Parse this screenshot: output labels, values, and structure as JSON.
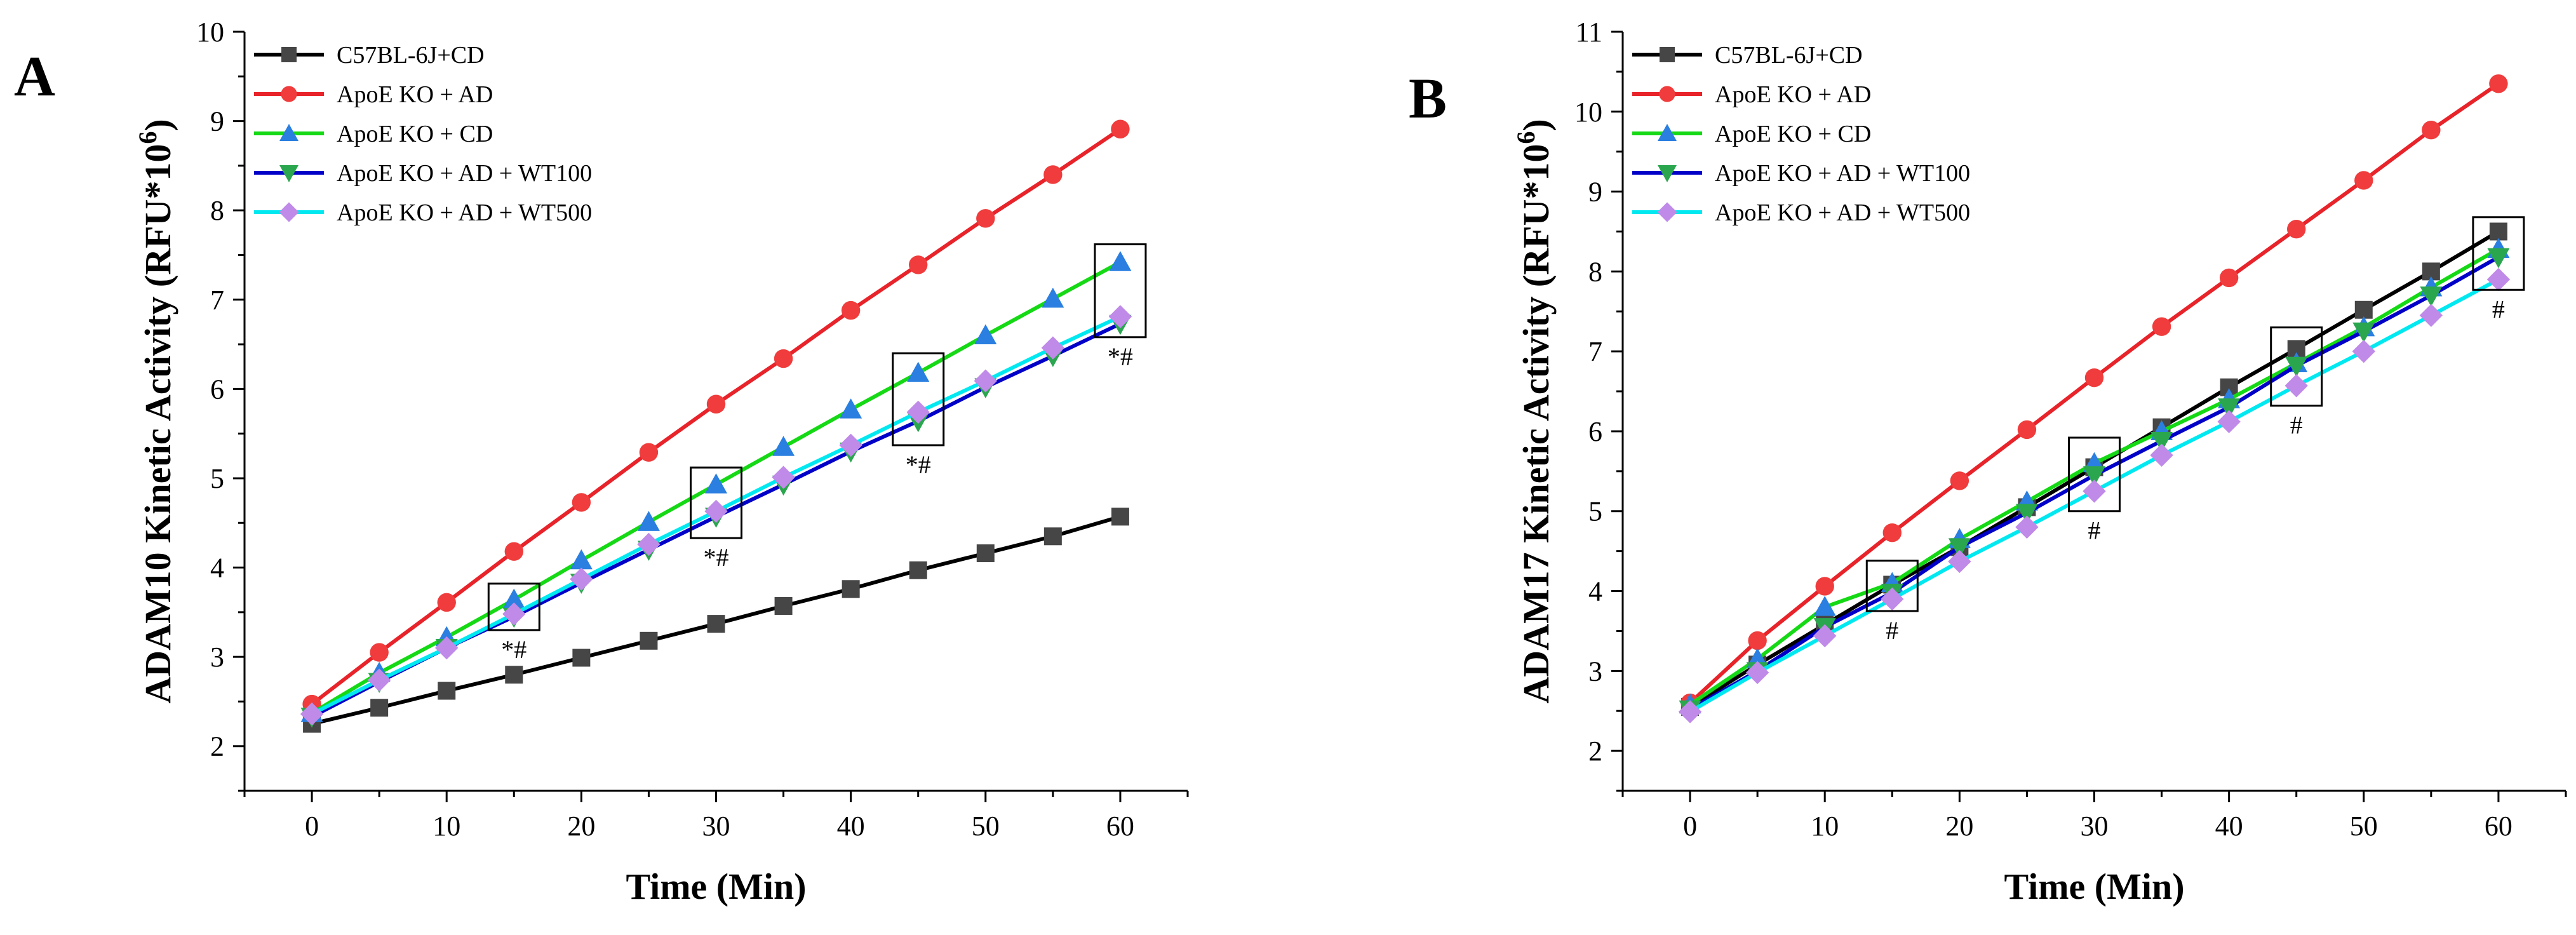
{
  "colors": {
    "C57BL-6J+CD": "#000000",
    "ApoE KO + AD": "#e8232a",
    "ApoE KO + CD": "#16d916",
    "ApoE KO + AD + WT100": "#0000c8",
    "ApoE KO + AD + WT500": "#00e8f0"
  },
  "marker_colors": {
    "C57BL-6J+CD": "#464646",
    "ApoE KO + AD": "#f03c3c",
    "ApoE KO + CD": "#2a7fe0",
    "ApoE KO + AD + WT100": "#2aa64e",
    "ApoE KO + AD + WT500": "#c08ae8"
  },
  "markers": {
    "C57BL-6J+CD": "square",
    "ApoE KO + AD": "circle",
    "ApoE KO + CD": "triangle-up",
    "ApoE KO + AD + WT100": "triangle-down",
    "ApoE KO + AD + WT500": "diamond"
  },
  "chart_data": [
    {
      "type": "line",
      "panel_label": "A",
      "title": "",
      "xlabel": "Time (Min)",
      "ylabel_main": "ADAM10 Kinetic Activity (RFU*10",
      "ylabel_sup": "6",
      "ylabel_end": ")",
      "xlim": [
        -5,
        65
      ],
      "ylim": [
        1.5,
        10
      ],
      "xticks": [
        0,
        10,
        20,
        30,
        40,
        50,
        60
      ],
      "yticks": [
        2,
        3,
        4,
        5,
        6,
        7,
        8,
        9,
        10
      ],
      "x": [
        0,
        5,
        10,
        15,
        20,
        25,
        30,
        35,
        40,
        45,
        50,
        55,
        60
      ],
      "legend_position": "top-left",
      "series": [
        {
          "name": "C57BL-6J+CD",
          "values": [
            2.25,
            2.43,
            2.62,
            2.8,
            2.99,
            3.18,
            3.37,
            3.57,
            3.76,
            3.97,
            4.16,
            4.35,
            4.57
          ]
        },
        {
          "name": "ApoE KO + AD",
          "values": [
            2.47,
            3.05,
            3.61,
            4.18,
            4.73,
            5.29,
            5.83,
            6.34,
            6.88,
            7.39,
            7.91,
            8.4,
            8.91
          ]
        },
        {
          "name": "ApoE KO + CD",
          "values": [
            2.37,
            2.82,
            3.22,
            3.64,
            4.08,
            4.51,
            4.93,
            5.35,
            5.77,
            6.18,
            6.6,
            7.01,
            7.42
          ]
        },
        {
          "name": "ApoE KO + AD + WT100",
          "values": [
            2.33,
            2.72,
            3.1,
            3.45,
            3.83,
            4.2,
            4.57,
            4.93,
            5.3,
            5.64,
            6.02,
            6.37,
            6.73
          ]
        },
        {
          "name": "ApoE KO + AD + WT500",
          "values": [
            2.36,
            2.74,
            3.1,
            3.48,
            3.87,
            4.26,
            4.63,
            5.01,
            5.37,
            5.74,
            6.09,
            6.46,
            6.81
          ]
        }
      ],
      "annotations": [
        {
          "x": 15,
          "y_low": 3.3,
          "y_high": 3.82,
          "label": "*#"
        },
        {
          "x": 30,
          "y_low": 4.33,
          "y_high": 5.12,
          "label": "*#"
        },
        {
          "x": 45,
          "y_low": 5.37,
          "y_high": 6.4,
          "label": "*#"
        },
        {
          "x": 60,
          "y_low": 6.58,
          "y_high": 7.62,
          "label": "*#"
        }
      ]
    },
    {
      "type": "line",
      "panel_label": "B",
      "title": "",
      "xlabel": "Time (Min)",
      "ylabel_main": "ADAM17 Kinetic Activity (RFU*10",
      "ylabel_sup": "6",
      "ylabel_end": ")",
      "xlim": [
        -5,
        65
      ],
      "ylim": [
        1.5,
        11
      ],
      "xticks": [
        0,
        10,
        20,
        30,
        40,
        50,
        60
      ],
      "yticks": [
        2,
        3,
        4,
        5,
        6,
        7,
        8,
        9,
        10,
        11
      ],
      "x": [
        0,
        5,
        10,
        15,
        20,
        25,
        30,
        35,
        40,
        45,
        50,
        55,
        60
      ],
      "legend_position": "top-left",
      "series": [
        {
          "name": "C57BL-6J+CD",
          "values": [
            2.55,
            3.08,
            3.58,
            4.08,
            4.55,
            5.05,
            5.55,
            6.05,
            6.55,
            7.03,
            7.52,
            8.0,
            8.5
          ]
        },
        {
          "name": "ApoE KO + AD",
          "values": [
            2.6,
            3.38,
            4.06,
            4.73,
            5.38,
            6.02,
            6.67,
            7.31,
            7.92,
            8.53,
            9.14,
            9.77,
            10.35
          ]
        },
        {
          "name": "ApoE KO + CD",
          "values": [
            2.58,
            3.15,
            3.8,
            4.1,
            4.65,
            5.12,
            5.6,
            6.0,
            6.4,
            6.85,
            7.3,
            7.8,
            8.28
          ]
        },
        {
          "name": "ApoE KO + AD + WT100",
          "values": [
            2.52,
            3.0,
            3.55,
            3.98,
            4.55,
            4.98,
            5.45,
            5.88,
            6.3,
            6.82,
            7.25,
            7.7,
            8.18
          ]
        },
        {
          "name": "ApoE KO + AD + WT500",
          "values": [
            2.49,
            2.98,
            3.44,
            3.9,
            4.37,
            4.8,
            5.25,
            5.7,
            6.12,
            6.57,
            7.0,
            7.45,
            7.9
          ]
        }
      ],
      "annotations": [
        {
          "x": 15,
          "y_low": 3.75,
          "y_high": 4.38,
          "label": "#"
        },
        {
          "x": 30,
          "y_low": 5.0,
          "y_high": 5.92,
          "label": "#"
        },
        {
          "x": 45,
          "y_low": 6.32,
          "y_high": 7.3,
          "label": "#"
        },
        {
          "x": 60,
          "y_low": 7.77,
          "y_high": 8.68,
          "label": "#"
        }
      ]
    }
  ]
}
